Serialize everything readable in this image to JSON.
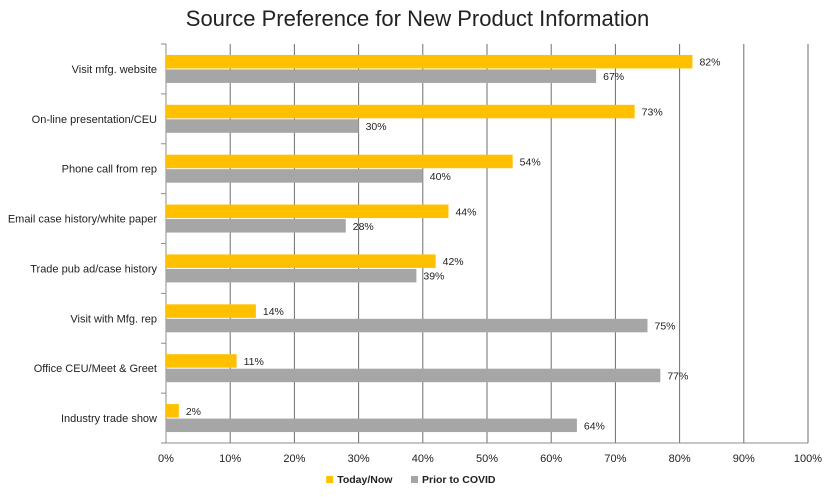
{
  "chart_data": {
    "type": "bar",
    "orientation": "horizontal",
    "title": "Source Preference for New Product Information",
    "xlabel": "",
    "ylabel": "",
    "categories": [
      "Visit mfg. website",
      "On-line presentation/CEU",
      "Phone call from rep",
      "Email case history/white paper",
      "Trade pub ad/case history",
      "Visit with Mfg. rep",
      "Office CEU/Meet & Greet",
      "Industry trade show"
    ],
    "series": [
      {
        "name": "Today/Now",
        "color": "#FFC000",
        "values": [
          82,
          73,
          54,
          44,
          42,
          14,
          11,
          2
        ]
      },
      {
        "name": "Prior to COVID",
        "color": "#A6A6A6",
        "values": [
          67,
          30,
          40,
          28,
          39,
          75,
          77,
          64
        ]
      }
    ],
    "xlim": [
      0,
      100
    ],
    "xticks": [
      "0%",
      "10%",
      "20%",
      "30%",
      "40%",
      "50%",
      "60%",
      "70%",
      "80%",
      "90%",
      "100%"
    ],
    "value_suffix": "%",
    "grid": "vertical",
    "legend": "bottom-center"
  }
}
